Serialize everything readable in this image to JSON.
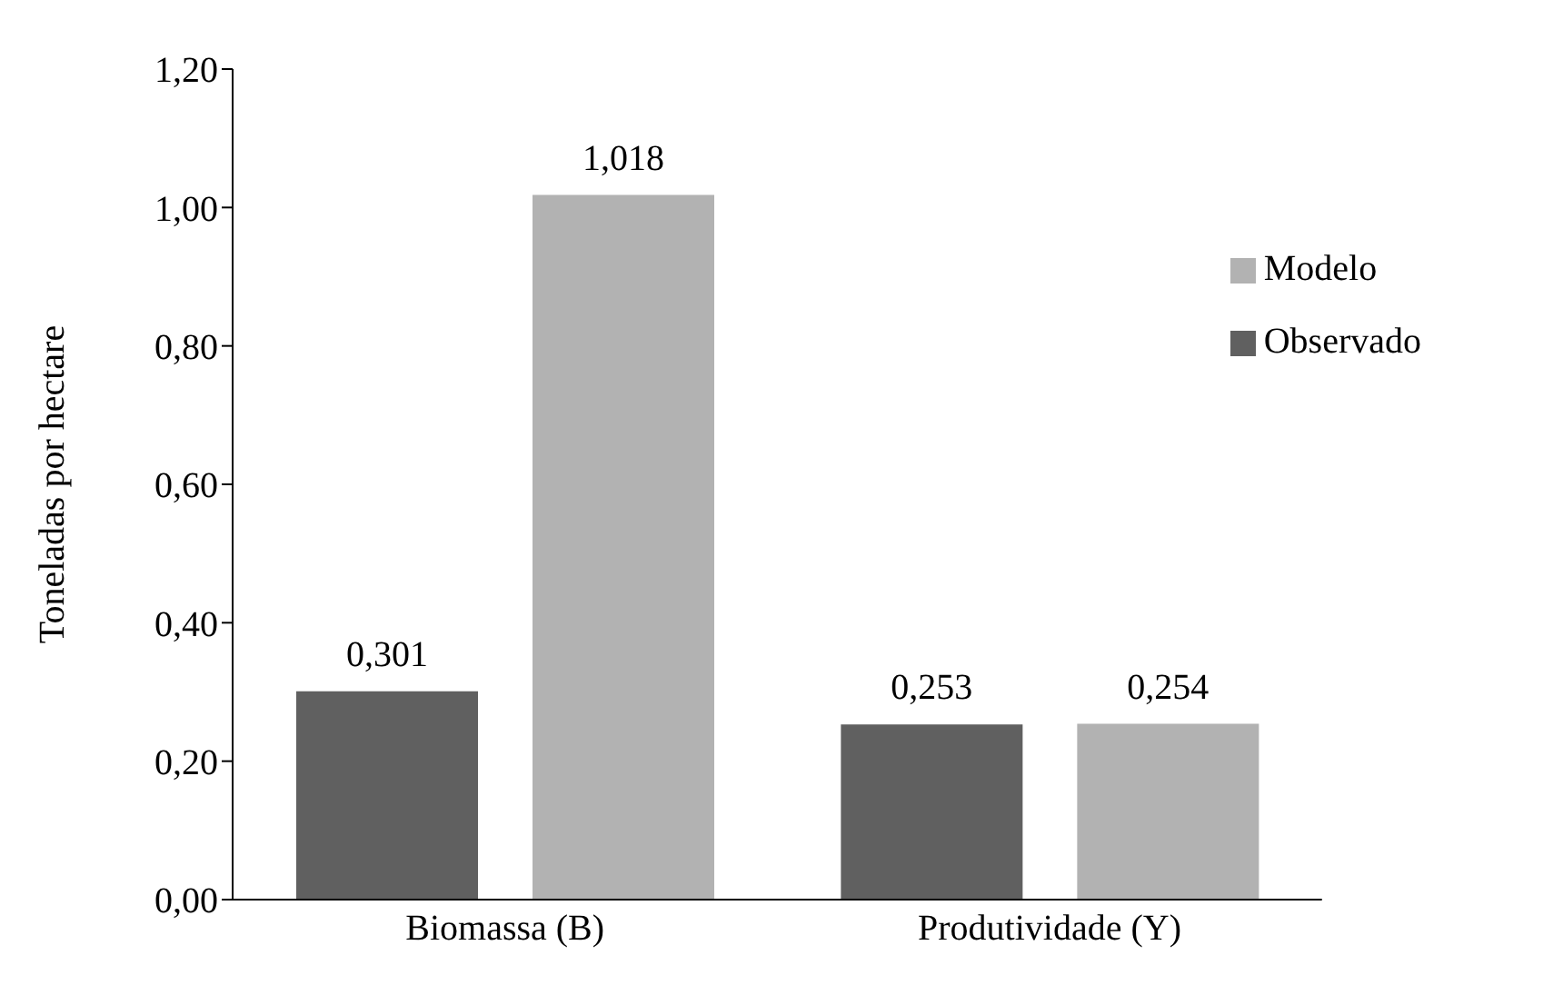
{
  "chart_data": {
    "type": "bar",
    "ylabel": "Toneladas por hectare",
    "categories": [
      "Biomassa (B)",
      "Produtividade (Y)"
    ],
    "series": [
      {
        "name": "Observado",
        "color": "#606060",
        "values": [
          0.301,
          0.253
        ],
        "value_labels": [
          "0,301",
          "0,253"
        ]
      },
      {
        "name": "Modelo",
        "color": "#b2b2b2",
        "values": [
          1.018,
          0.254
        ],
        "value_labels": [
          "1,018",
          "0,254"
        ]
      }
    ],
    "ylim": [
      0,
      1.2
    ],
    "yticks": [
      {
        "value": 0,
        "label": "0,00"
      },
      {
        "value": 0.2,
        "label": "0,20"
      },
      {
        "value": 0.4,
        "label": "0,40"
      },
      {
        "value": 0.6,
        "label": "0,60"
      },
      {
        "value": 0.8,
        "label": "0,80"
      },
      {
        "value": 1.0,
        "label": "1,00"
      },
      {
        "value": 1.2,
        "label": "1,20"
      }
    ],
    "grid": false,
    "legend": "top right"
  }
}
